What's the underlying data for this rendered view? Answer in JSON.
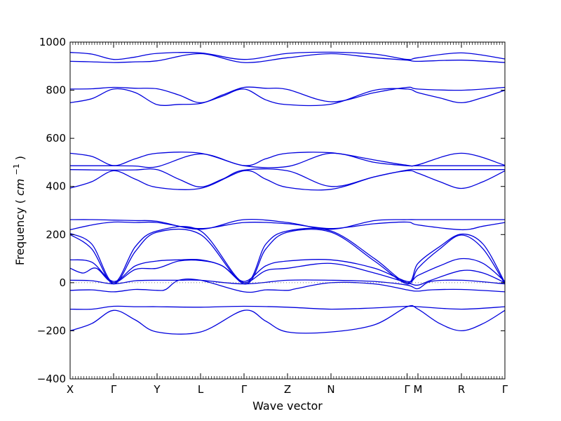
{
  "chart_data": {
    "type": "line",
    "title": "",
    "xlabel": "Wave vector",
    "ylabel": "Frequency",
    "ylabel_unit": "cm",
    "ylabel_unit_exp": "−1",
    "ylim": [
      -400,
      1000
    ],
    "yticks": [
      "−400",
      "−200",
      "0",
      "200",
      "400",
      "600",
      "800",
      "1000"
    ],
    "ytick_values": [
      -400,
      -200,
      0,
      200,
      400,
      600,
      800,
      1000
    ],
    "xlim": [
      0,
      10
    ],
    "high_symmetry_points": [
      {
        "label": "X",
        "x": 0
      },
      {
        "label": "Γ",
        "x": 1
      },
      {
        "label": "Y",
        "x": 2
      },
      {
        "label": "L",
        "x": 3
      },
      {
        "label": "Γ",
        "x": 4
      },
      {
        "label": "Z",
        "x": 5
      },
      {
        "label": "N",
        "x": 6
      },
      {
        "label": "Γ",
        "x": 7.75
      },
      {
        "label": "M",
        "x": 8
      },
      {
        "label": "R",
        "x": 9
      },
      {
        "label": "Γ",
        "x": 10
      }
    ],
    "zero_line": true,
    "grid": false,
    "legend": "none",
    "line_color": "#0000dd",
    "zero_line_color": "#555555",
    "series": [
      {
        "values": [
          [
            0,
            957
          ],
          [
            0.5,
            950
          ],
          [
            1,
            928
          ],
          [
            1.5,
            938
          ],
          [
            2,
            953
          ],
          [
            3,
            955
          ],
          [
            4,
            928
          ],
          [
            5,
            953
          ],
          [
            6,
            958
          ],
          [
            7,
            950
          ],
          [
            7.75,
            928
          ],
          [
            8,
            935
          ],
          [
            9,
            955
          ],
          [
            10,
            930
          ]
        ]
      },
      {
        "values": [
          [
            0,
            920
          ],
          [
            0.5,
            918
          ],
          [
            1,
            915
          ],
          [
            1.5,
            918
          ],
          [
            2,
            922
          ],
          [
            3,
            952
          ],
          [
            4,
            915
          ],
          [
            5,
            935
          ],
          [
            6,
            952
          ],
          [
            7,
            935
          ],
          [
            7.75,
            925
          ],
          [
            8,
            920
          ],
          [
            9,
            925
          ],
          [
            10,
            915
          ]
        ]
      },
      {
        "values": [
          [
            0,
            805
          ],
          [
            0.5,
            806
          ],
          [
            1,
            812
          ],
          [
            1.5,
            808
          ],
          [
            2,
            806
          ],
          [
            2.5,
            780
          ],
          [
            3,
            748
          ],
          [
            3.5,
            780
          ],
          [
            4,
            812
          ],
          [
            4.5,
            808
          ],
          [
            5,
            803
          ],
          [
            6,
            752
          ],
          [
            7,
            790
          ],
          [
            7.75,
            812
          ],
          [
            8,
            805
          ],
          [
            9,
            800
          ],
          [
            10,
            812
          ]
        ]
      },
      {
        "values": [
          [
            0,
            748
          ],
          [
            0.5,
            765
          ],
          [
            1,
            805
          ],
          [
            1.5,
            790
          ],
          [
            2,
            740
          ],
          [
            2.5,
            741
          ],
          [
            3,
            745
          ],
          [
            3.5,
            775
          ],
          [
            4,
            805
          ],
          [
            4.5,
            760
          ],
          [
            5,
            740
          ],
          [
            6,
            742
          ],
          [
            7,
            800
          ],
          [
            7.75,
            805
          ],
          [
            8,
            790
          ],
          [
            8.5,
            768
          ],
          [
            9,
            748
          ],
          [
            9.5,
            770
          ],
          [
            10,
            800
          ]
        ]
      },
      {
        "values": [
          [
            0,
            538
          ],
          [
            0.5,
            525
          ],
          [
            1,
            487
          ],
          [
            1.5,
            515
          ],
          [
            2,
            538
          ],
          [
            3,
            538
          ],
          [
            4,
            487
          ],
          [
            4.5,
            515
          ],
          [
            5,
            538
          ],
          [
            6,
            540
          ],
          [
            7,
            510
          ],
          [
            7.75,
            488
          ],
          [
            8,
            490
          ],
          [
            9,
            538
          ],
          [
            10,
            488
          ]
        ]
      },
      {
        "values": [
          [
            0,
            486
          ],
          [
            0.5,
            486
          ],
          [
            1,
            486
          ],
          [
            1.5,
            485
          ],
          [
            2,
            482
          ],
          [
            3,
            535
          ],
          [
            4,
            486
          ],
          [
            5,
            483
          ],
          [
            6,
            538
          ],
          [
            7,
            500
          ],
          [
            7.75,
            486
          ],
          [
            8,
            486
          ],
          [
            9,
            486
          ],
          [
            10,
            486
          ]
        ]
      },
      {
        "values": [
          [
            0,
            470
          ],
          [
            0.5,
            469
          ],
          [
            1,
            468
          ],
          [
            1.5,
            469
          ],
          [
            2,
            470
          ],
          [
            2.5,
            430
          ],
          [
            3,
            398
          ],
          [
            3.5,
            430
          ],
          [
            4,
            468
          ],
          [
            5,
            465
          ],
          [
            6,
            400
          ],
          [
            7,
            440
          ],
          [
            7.75,
            468
          ],
          [
            8,
            470
          ],
          [
            9,
            470
          ],
          [
            10,
            470
          ]
        ]
      },
      {
        "values": [
          [
            0,
            393
          ],
          [
            0.5,
            420
          ],
          [
            1,
            465
          ],
          [
            1.5,
            430
          ],
          [
            2,
            396
          ],
          [
            3,
            392
          ],
          [
            4,
            465
          ],
          [
            4.5,
            430
          ],
          [
            5,
            396
          ],
          [
            6,
            388
          ],
          [
            7,
            440
          ],
          [
            7.75,
            465
          ],
          [
            8,
            455
          ],
          [
            8.5,
            420
          ],
          [
            9,
            392
          ],
          [
            9.5,
            420
          ],
          [
            10,
            465
          ]
        ]
      },
      {
        "values": [
          [
            0,
            262
          ],
          [
            0.5,
            262
          ],
          [
            1,
            260
          ],
          [
            1.5,
            258
          ],
          [
            2,
            255
          ],
          [
            3,
            222
          ],
          [
            4,
            262
          ],
          [
            5,
            250
          ],
          [
            6,
            222
          ],
          [
            7,
            258
          ],
          [
            7.75,
            262
          ],
          [
            8,
            262
          ],
          [
            9,
            262
          ],
          [
            10,
            262
          ]
        ]
      },
      {
        "values": [
          [
            0,
            220
          ],
          [
            0.5,
            240
          ],
          [
            1,
            252
          ],
          [
            1.5,
            250
          ],
          [
            2,
            250
          ],
          [
            3,
            225
          ],
          [
            4,
            250
          ],
          [
            5,
            245
          ],
          [
            6,
            225
          ],
          [
            7,
            245
          ],
          [
            7.75,
            252
          ],
          [
            8,
            240
          ],
          [
            9,
            220
          ],
          [
            9.5,
            235
          ],
          [
            10,
            250
          ]
        ]
      },
      {
        "values": [
          [
            0,
            205
          ],
          [
            0.5,
            160
          ],
          [
            1,
            0
          ],
          [
            1.5,
            150
          ],
          [
            2,
            215
          ],
          [
            3,
            215
          ],
          [
            4,
            0
          ],
          [
            4.5,
            160
          ],
          [
            5,
            215
          ],
          [
            6,
            215
          ],
          [
            7,
            100
          ],
          [
            7.75,
            0
          ],
          [
            8,
            80
          ],
          [
            8.5,
            150
          ],
          [
            9,
            202
          ],
          [
            9.5,
            160
          ],
          [
            10,
            0
          ]
        ]
      },
      {
        "values": [
          [
            0,
            200
          ],
          [
            0.5,
            140
          ],
          [
            1,
            -5
          ],
          [
            1.5,
            130
          ],
          [
            2,
            210
          ],
          [
            3,
            200
          ],
          [
            4,
            -5
          ],
          [
            4.5,
            140
          ],
          [
            5,
            210
          ],
          [
            6,
            210
          ],
          [
            7,
            90
          ],
          [
            7.75,
            -5
          ],
          [
            8,
            60
          ],
          [
            8.5,
            140
          ],
          [
            9,
            198
          ],
          [
            9.5,
            140
          ],
          [
            10,
            -5
          ]
        ]
      },
      {
        "values": [
          [
            0,
            95
          ],
          [
            0.5,
            85
          ],
          [
            1,
            5
          ],
          [
            1.5,
            70
          ],
          [
            2,
            90
          ],
          [
            2.5,
            95
          ],
          [
            3,
            95
          ],
          [
            3.5,
            70
          ],
          [
            4,
            5
          ],
          [
            4.5,
            70
          ],
          [
            5,
            90
          ],
          [
            6,
            95
          ],
          [
            7,
            60
          ],
          [
            7.75,
            5
          ],
          [
            8,
            30
          ],
          [
            8.5,
            70
          ],
          [
            9,
            100
          ],
          [
            9.5,
            80
          ],
          [
            10,
            5
          ]
        ]
      },
      {
        "values": [
          [
            0,
            60
          ],
          [
            0.3,
            40
          ],
          [
            0.6,
            60
          ],
          [
            1,
            0
          ],
          [
            1.5,
            55
          ],
          [
            2,
            60
          ],
          [
            2.5,
            90
          ],
          [
            3,
            92
          ],
          [
            3.5,
            70
          ],
          [
            4,
            0
          ],
          [
            4.5,
            50
          ],
          [
            5,
            60
          ],
          [
            6,
            80
          ],
          [
            7,
            40
          ],
          [
            7.75,
            0
          ],
          [
            8,
            -10
          ],
          [
            8.3,
            10
          ],
          [
            9,
            50
          ],
          [
            9.5,
            40
          ],
          [
            10,
            0
          ]
        ]
      },
      {
        "values": [
          [
            0,
            10
          ],
          [
            0.5,
            8
          ],
          [
            1,
            -5
          ],
          [
            1.5,
            8
          ],
          [
            2,
            10
          ],
          [
            2.5,
            10
          ],
          [
            3,
            10
          ],
          [
            4,
            -5
          ],
          [
            5,
            10
          ],
          [
            6,
            10
          ],
          [
            7,
            5
          ],
          [
            7.75,
            -10
          ],
          [
            8,
            -25
          ],
          [
            8.3,
            5
          ],
          [
            9,
            10
          ],
          [
            10,
            -5
          ]
        ]
      },
      {
        "values": [
          [
            0,
            -32
          ],
          [
            0.5,
            -30
          ],
          [
            1,
            -38
          ],
          [
            1.5,
            -28
          ],
          [
            2,
            -32
          ],
          [
            2.2,
            -28
          ],
          [
            2.5,
            10
          ],
          [
            3,
            10
          ],
          [
            4,
            -38
          ],
          [
            4.5,
            -30
          ],
          [
            5,
            -32
          ],
          [
            5.2,
            -25
          ],
          [
            6,
            0
          ],
          [
            7,
            -5
          ],
          [
            7.75,
            -30
          ],
          [
            8,
            -35
          ],
          [
            8.3,
            -30
          ],
          [
            9,
            -28
          ],
          [
            10,
            -38
          ]
        ]
      },
      {
        "values": [
          [
            0,
            -110
          ],
          [
            0.5,
            -110
          ],
          [
            1,
            -98
          ],
          [
            1.5,
            -100
          ],
          [
            2,
            -100
          ],
          [
            3,
            -102
          ],
          [
            4,
            -98
          ],
          [
            5,
            -102
          ],
          [
            6,
            -110
          ],
          [
            7,
            -105
          ],
          [
            7.75,
            -98
          ],
          [
            8,
            -100
          ],
          [
            9,
            -110
          ],
          [
            10,
            -100
          ]
        ]
      },
      {
        "values": [
          [
            0,
            -200
          ],
          [
            0.5,
            -170
          ],
          [
            1,
            -115
          ],
          [
            1.5,
            -155
          ],
          [
            2,
            -205
          ],
          [
            3,
            -205
          ],
          [
            4,
            -115
          ],
          [
            4.5,
            -160
          ],
          [
            5,
            -205
          ],
          [
            6,
            -205
          ],
          [
            7,
            -175
          ],
          [
            7.75,
            -100
          ],
          [
            8,
            -110
          ],
          [
            8.5,
            -170
          ],
          [
            9,
            -200
          ],
          [
            9.5,
            -170
          ],
          [
            10,
            -115
          ]
        ]
      }
    ]
  }
}
